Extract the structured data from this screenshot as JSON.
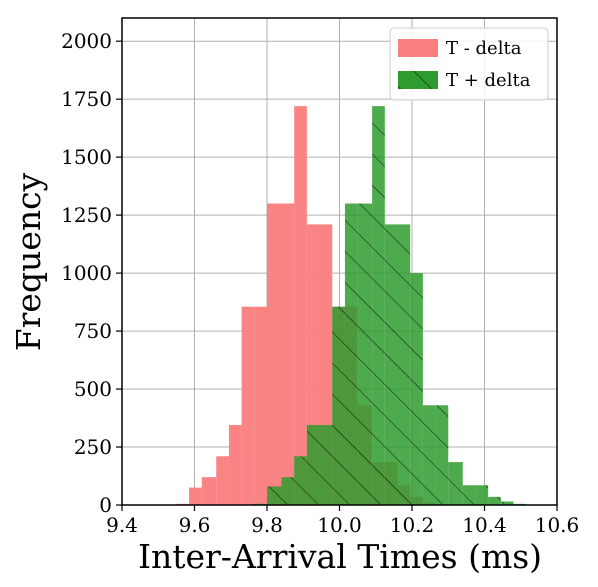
{
  "chart_data": {
    "type": "histogram",
    "title": "",
    "xlabel": "Inter-Arrival Times (ms)",
    "ylabel": "Frequency",
    "xlim": [
      9.4,
      10.6
    ],
    "ylim": [
      0,
      2100
    ],
    "xticks": [
      "9.4",
      "9.6",
      "9.8",
      "10.0",
      "10.2",
      "10.4",
      "10.6"
    ],
    "yticks": [
      "0",
      "250",
      "500",
      "750",
      "1000",
      "1250",
      "1500",
      "1750",
      "2000"
    ],
    "grid": true,
    "legend_position": "top-right",
    "series": [
      {
        "name": "T - delta",
        "color": "#fa8080",
        "hatch": false,
        "bins": [
          {
            "x0": 9.55,
            "x1": 9.585,
            "count": 5
          },
          {
            "x0": 9.585,
            "x1": 9.62,
            "count": 75
          },
          {
            "x0": 9.62,
            "x1": 9.66,
            "count": 120
          },
          {
            "x0": 9.66,
            "x1": 9.695,
            "count": 210
          },
          {
            "x0": 9.695,
            "x1": 9.73,
            "count": 345
          },
          {
            "x0": 9.73,
            "x1": 9.765,
            "count": 855
          },
          {
            "x0": 9.765,
            "x1": 9.8,
            "count": 855
          },
          {
            "x0": 9.8,
            "x1": 9.84,
            "count": 1300
          },
          {
            "x0": 9.84,
            "x1": 9.875,
            "count": 1300
          },
          {
            "x0": 9.875,
            "x1": 9.91,
            "count": 1720
          },
          {
            "x0": 9.91,
            "x1": 9.945,
            "count": 1210
          },
          {
            "x0": 9.945,
            "x1": 9.98,
            "count": 1210
          },
          {
            "x0": 9.98,
            "x1": 10.015,
            "count": 855
          },
          {
            "x0": 10.015,
            "x1": 10.05,
            "count": 855
          },
          {
            "x0": 10.05,
            "x1": 10.09,
            "count": 430
          },
          {
            "x0": 10.09,
            "x1": 10.125,
            "count": 185
          },
          {
            "x0": 10.125,
            "x1": 10.16,
            "count": 185
          },
          {
            "x0": 10.16,
            "x1": 10.195,
            "count": 85
          },
          {
            "x0": 10.195,
            "x1": 10.23,
            "count": 35
          },
          {
            "x0": 10.23,
            "x1": 10.265,
            "count": 10
          }
        ]
      },
      {
        "name": "T + delta",
        "color": "#2e9b2e",
        "hatch": true,
        "bins": [
          {
            "x0": 9.765,
            "x1": 9.8,
            "count": 5
          },
          {
            "x0": 9.8,
            "x1": 9.84,
            "count": 80
          },
          {
            "x0": 9.84,
            "x1": 9.875,
            "count": 120
          },
          {
            "x0": 9.875,
            "x1": 9.91,
            "count": 210
          },
          {
            "x0": 9.91,
            "x1": 9.945,
            "count": 345
          },
          {
            "x0": 9.945,
            "x1": 9.98,
            "count": 345
          },
          {
            "x0": 9.98,
            "x1": 10.015,
            "count": 855
          },
          {
            "x0": 10.015,
            "x1": 10.05,
            "count": 1300
          },
          {
            "x0": 10.05,
            "x1": 10.09,
            "count": 1300
          },
          {
            "x0": 10.09,
            "x1": 10.125,
            "count": 1720
          },
          {
            "x0": 10.125,
            "x1": 10.16,
            "count": 1210
          },
          {
            "x0": 10.16,
            "x1": 10.195,
            "count": 1210
          },
          {
            "x0": 10.195,
            "x1": 10.23,
            "count": 1000
          },
          {
            "x0": 10.23,
            "x1": 10.265,
            "count": 430
          },
          {
            "x0": 10.265,
            "x1": 10.3,
            "count": 430
          },
          {
            "x0": 10.3,
            "x1": 10.34,
            "count": 185
          },
          {
            "x0": 10.34,
            "x1": 10.375,
            "count": 85
          },
          {
            "x0": 10.375,
            "x1": 10.41,
            "count": 85
          },
          {
            "x0": 10.41,
            "x1": 10.445,
            "count": 35
          },
          {
            "x0": 10.445,
            "x1": 10.48,
            "count": 15
          },
          {
            "x0": 10.48,
            "x1": 10.515,
            "count": 5
          }
        ]
      }
    ]
  }
}
